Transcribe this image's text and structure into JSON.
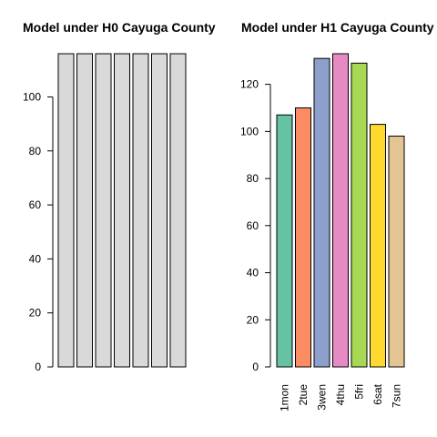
{
  "chart_data": [
    {
      "type": "bar",
      "title": "Model under H0 Cayuga County",
      "categories": [
        "1mon",
        "2tue",
        "3wen",
        "4thu",
        "5fri",
        "6sat",
        "7sun"
      ],
      "show_category_labels": false,
      "values": [
        116,
        116,
        116,
        116,
        116,
        116,
        116
      ],
      "colors": [
        "#d9d9d9",
        "#d9d9d9",
        "#d9d9d9",
        "#d9d9d9",
        "#d9d9d9",
        "#d9d9d9",
        "#d9d9d9"
      ],
      "yticks": [
        0,
        20,
        40,
        60,
        80,
        100
      ],
      "ylim": [
        0,
        116
      ],
      "xlabel": "",
      "ylabel": "",
      "grid": false,
      "legend": "none"
    },
    {
      "type": "bar",
      "title": "Model under H1 Cayuga County",
      "categories": [
        "1mon",
        "2tue",
        "3wen",
        "4thu",
        "5fri",
        "6sat",
        "7sun"
      ],
      "show_category_labels": true,
      "values": [
        107,
        110,
        131,
        133,
        129,
        103,
        98
      ],
      "colors": [
        "#66c2a5",
        "#fc8d62",
        "#8da0cb",
        "#e78ac3",
        "#a6d854",
        "#ffd92f",
        "#e5c494"
      ],
      "yticks": [
        0,
        20,
        40,
        60,
        80,
        100,
        120
      ],
      "ylim": [
        0,
        133
      ],
      "xlabel": "",
      "ylabel": "",
      "grid": false,
      "legend": "none"
    }
  ]
}
